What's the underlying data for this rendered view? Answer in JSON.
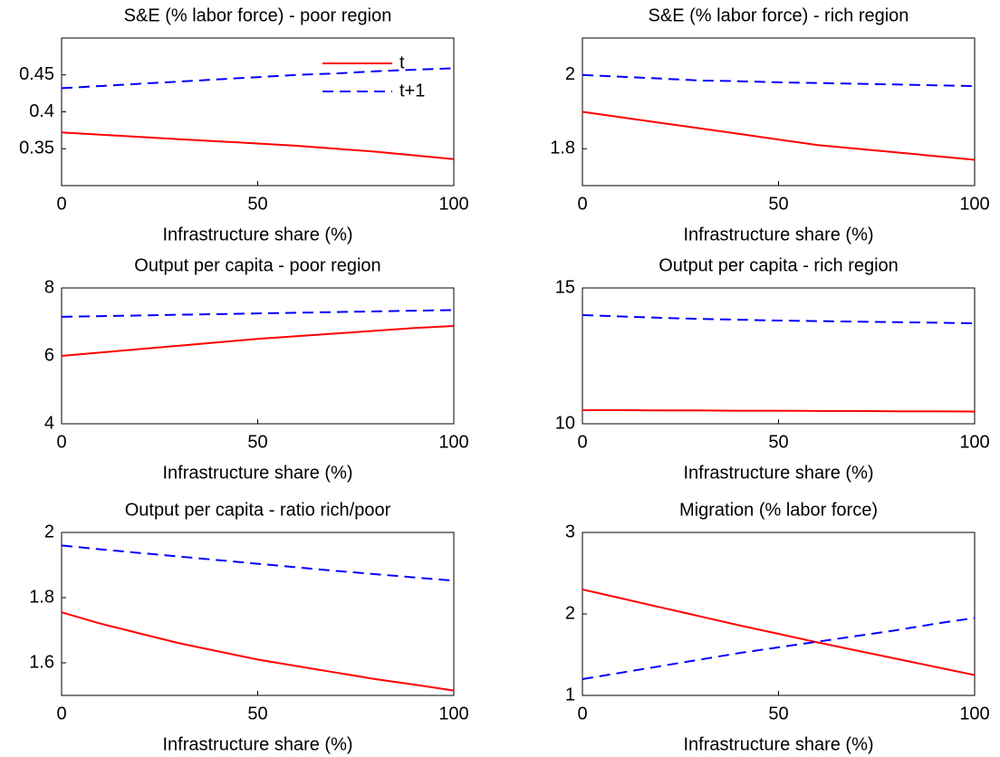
{
  "chart_data": [
    {
      "type": "line",
      "title": "S&E (% labor force) - poor region",
      "xlabel": "Infrastructure share (%)",
      "x": [
        0,
        10,
        20,
        30,
        40,
        50,
        60,
        70,
        80,
        90,
        100
      ],
      "xlim": [
        0,
        100
      ],
      "xticks": [
        0,
        50,
        100
      ],
      "ylim": [
        0.3,
        0.5
      ],
      "yticks": [
        0.35,
        0.4,
        0.45
      ],
      "legend": "upper right",
      "series": [
        {
          "name": "t",
          "color": "#ff0000",
          "linestyle": "solid",
          "values": [
            0.372,
            0.369,
            0.366,
            0.363,
            0.36,
            0.357,
            0.354,
            0.35,
            0.346,
            0.341,
            0.336
          ]
        },
        {
          "name": "t+1",
          "color": "#0000ff",
          "linestyle": "dashed",
          "values": [
            0.432,
            0.435,
            0.438,
            0.441,
            0.444,
            0.447,
            0.45,
            0.452,
            0.455,
            0.457,
            0.459
          ]
        }
      ]
    },
    {
      "type": "line",
      "title": "S&E (% labor force) - rich region",
      "xlabel": "Infrastructure share (%)",
      "x": [
        0,
        10,
        20,
        30,
        40,
        50,
        60,
        70,
        80,
        90,
        100
      ],
      "xlim": [
        0,
        100
      ],
      "xticks": [
        0,
        50,
        100
      ],
      "ylim": [
        1.7,
        2.1
      ],
      "yticks": [
        1.8,
        2
      ],
      "series": [
        {
          "color": "#ff0000",
          "linestyle": "solid",
          "values": [
            1.9,
            1.885,
            1.87,
            1.855,
            1.84,
            1.825,
            1.81,
            1.8,
            1.79,
            1.78,
            1.77
          ]
        },
        {
          "color": "#0000ff",
          "linestyle": "dashed",
          "values": [
            2.0,
            1.995,
            1.99,
            1.985,
            1.983,
            1.98,
            1.978,
            1.976,
            1.974,
            1.972,
            1.97
          ]
        }
      ]
    },
    {
      "type": "line",
      "title": "Output per capita - poor region",
      "xlabel": "Infrastructure share (%)",
      "x": [
        0,
        10,
        20,
        30,
        40,
        50,
        60,
        70,
        80,
        90,
        100
      ],
      "xlim": [
        0,
        100
      ],
      "xticks": [
        0,
        50,
        100
      ],
      "ylim": [
        4,
        8
      ],
      "yticks": [
        4,
        6,
        8
      ],
      "series": [
        {
          "color": "#ff0000",
          "linestyle": "solid",
          "values": [
            6.0,
            6.1,
            6.2,
            6.3,
            6.4,
            6.5,
            6.58,
            6.66,
            6.74,
            6.82,
            6.88
          ]
        },
        {
          "color": "#0000ff",
          "linestyle": "dashed",
          "values": [
            7.15,
            7.17,
            7.19,
            7.21,
            7.23,
            7.25,
            7.27,
            7.29,
            7.31,
            7.33,
            7.35
          ]
        }
      ]
    },
    {
      "type": "line",
      "title": "Output per capita - rich region",
      "xlabel": "Infrastructure share (%)",
      "x": [
        0,
        10,
        20,
        30,
        40,
        50,
        60,
        70,
        80,
        90,
        100
      ],
      "xlim": [
        0,
        100
      ],
      "xticks": [
        0,
        50,
        100
      ],
      "ylim": [
        10,
        15
      ],
      "yticks": [
        10,
        15
      ],
      "series": [
        {
          "color": "#ff0000",
          "linestyle": "solid",
          "values": [
            10.5,
            10.5,
            10.49,
            10.49,
            10.48,
            10.48,
            10.47,
            10.47,
            10.46,
            10.46,
            10.45
          ]
        },
        {
          "color": "#0000ff",
          "linestyle": "dashed",
          "values": [
            14.0,
            13.95,
            13.9,
            13.86,
            13.83,
            13.8,
            13.78,
            13.76,
            13.74,
            13.72,
            13.7
          ]
        }
      ]
    },
    {
      "type": "line",
      "title": "Output per capita - ratio rich/poor",
      "xlabel": "Infrastructure share (%)",
      "x": [
        0,
        10,
        20,
        30,
        40,
        50,
        60,
        70,
        80,
        90,
        100
      ],
      "xlim": [
        0,
        100
      ],
      "xticks": [
        0,
        50,
        100
      ],
      "ylim": [
        1.5,
        2
      ],
      "yticks": [
        1.6,
        1.8,
        2
      ],
      "series": [
        {
          "color": "#ff0000",
          "linestyle": "solid",
          "values": [
            1.755,
            1.72,
            1.69,
            1.66,
            1.635,
            1.61,
            1.59,
            1.57,
            1.55,
            1.533,
            1.515
          ]
        },
        {
          "color": "#0000ff",
          "linestyle": "dashed",
          "values": [
            1.96,
            1.948,
            1.937,
            1.926,
            1.915,
            1.904,
            1.893,
            1.882,
            1.872,
            1.862,
            1.852
          ]
        }
      ]
    },
    {
      "type": "line",
      "title": "Migration (% labor force)",
      "xlabel": "Infrastructure share (%)",
      "x": [
        0,
        10,
        20,
        30,
        40,
        50,
        60,
        70,
        80,
        90,
        100
      ],
      "xlim": [
        0,
        100
      ],
      "xticks": [
        0,
        50,
        100
      ],
      "ylim": [
        1,
        3
      ],
      "yticks": [
        1,
        2,
        3
      ],
      "series": [
        {
          "color": "#ff0000",
          "linestyle": "solid",
          "values": [
            2.3,
            2.19,
            2.08,
            1.97,
            1.86,
            1.755,
            1.65,
            1.55,
            1.45,
            1.35,
            1.25
          ]
        },
        {
          "color": "#0000ff",
          "linestyle": "dashed",
          "values": [
            1.2,
            1.28,
            1.36,
            1.44,
            1.52,
            1.59,
            1.66,
            1.73,
            1.8,
            1.88,
            1.95
          ]
        }
      ]
    }
  ]
}
